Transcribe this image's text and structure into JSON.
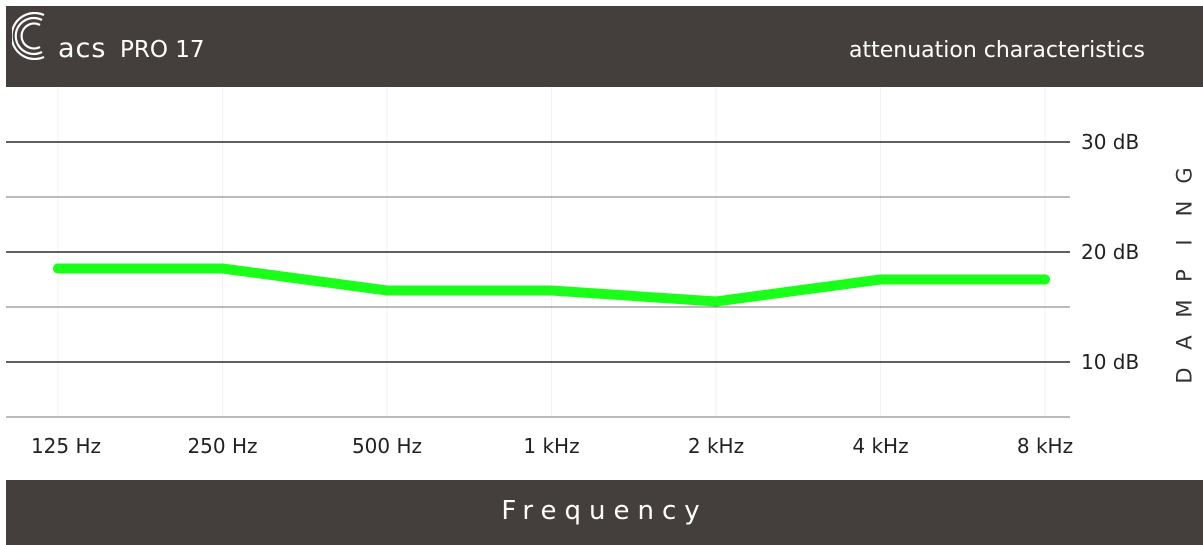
{
  "header": {
    "brand": "acs",
    "model": "PRO 17",
    "title": "attenuation characteristics"
  },
  "footer": {
    "xlabel": "Frequency"
  },
  "colors": {
    "bar": "#443f3c",
    "line": "#1aff1a",
    "grid": "#000000",
    "minor_grid": "#777777",
    "background": "#ffffff"
  },
  "chart_data": {
    "type": "line",
    "title": "attenuation characteristics",
    "xlabel": "Frequency",
    "ylabel": "DAMPING",
    "categories": [
      "125 Hz",
      "250 Hz",
      "500 Hz",
      "1 kHz",
      "2 kHz",
      "4 kHz",
      "8 kHz"
    ],
    "series": [
      {
        "values": [
          18.5,
          18.5,
          16.5,
          16.5,
          15.5,
          17.5,
          17.5
        ]
      }
    ],
    "ylim": [
      5,
      35
    ],
    "yticks": [
      10,
      20,
      30
    ],
    "ytick_labels": [
      "10 dB",
      "20 dB",
      "30 dB"
    ],
    "minor_yticks": [
      5,
      15,
      25
    ],
    "grid": true
  }
}
